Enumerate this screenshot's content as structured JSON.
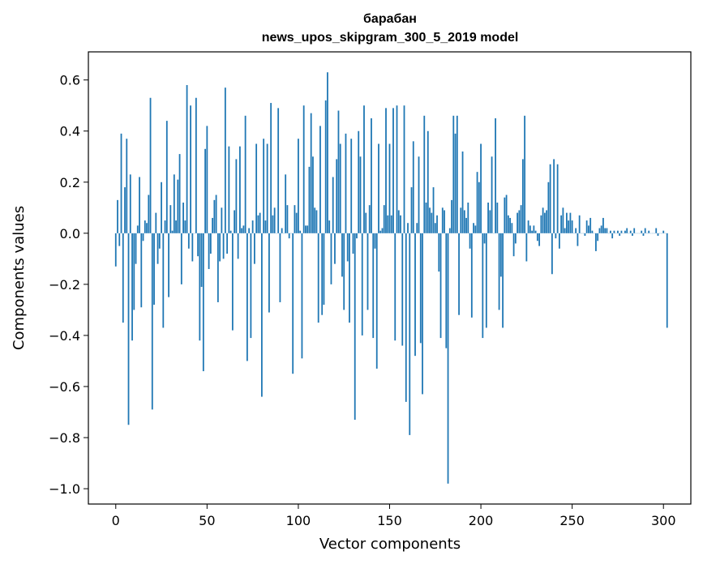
{
  "chart_data": {
    "type": "bar",
    "title": "барабан",
    "subtitle": "news_upos_skipgram_300_5_2019 model",
    "xlabel": "Vector components",
    "ylabel": "Components values",
    "xlim": [
      -15,
      315
    ],
    "ylim": [
      -1.06,
      0.71
    ],
    "xticks": [
      0,
      50,
      100,
      150,
      200,
      250,
      300
    ],
    "xtick_labels": [
      "0",
      "50",
      "100",
      "150",
      "200",
      "250",
      "300"
    ],
    "yticks": [
      -1.0,
      -0.8,
      -0.6,
      -0.4,
      -0.2,
      0.0,
      0.2,
      0.4,
      0.6
    ],
    "ytick_labels": [
      "−1.0",
      "−0.8",
      "−0.6",
      "−0.4",
      "−0.2",
      "0.0",
      "0.2",
      "0.4",
      "0.6"
    ],
    "bar_color": "#1f77b4",
    "grid": false,
    "series": [
      {
        "values": [
          -0.13,
          0.13,
          -0.05,
          0.39,
          -0.35,
          0.18,
          0.37,
          -0.75,
          0.23,
          -0.42,
          -0.3,
          -0.12,
          0.03,
          0.22,
          -0.29,
          -0.03,
          0.05,
          0.04,
          0.15,
          0.53,
          -0.69,
          -0.28,
          0.08,
          -0.12,
          -0.06,
          0.2,
          -0.37,
          0.05,
          0.44,
          -0.25,
          0.11,
          0.01,
          0.23,
          0.05,
          0.21,
          0.31,
          -0.2,
          0.12,
          0.05,
          0.58,
          -0.06,
          0.5,
          -0.11,
          0.0,
          0.53,
          -0.09,
          -0.42,
          -0.21,
          -0.54,
          0.33,
          0.42,
          -0.14,
          -0.08,
          0.06,
          0.13,
          0.15,
          -0.27,
          -0.11,
          0.1,
          -0.1,
          0.57,
          -0.08,
          0.34,
          0.01,
          -0.38,
          0.09,
          0.29,
          -0.1,
          0.34,
          0.02,
          0.03,
          0.46,
          -0.5,
          0.02,
          -0.41,
          0.05,
          -0.12,
          0.35,
          0.07,
          0.08,
          -0.64,
          0.37,
          0.05,
          0.35,
          -0.31,
          0.51,
          0.07,
          0.1,
          0.0,
          0.49,
          -0.27,
          0.02,
          0.0,
          0.23,
          0.11,
          -0.02,
          0.0,
          -0.55,
          0.11,
          0.08,
          0.37,
          0.01,
          -0.49,
          0.5,
          0.03,
          0.03,
          0.26,
          0.47,
          0.3,
          0.1,
          0.09,
          -0.35,
          0.42,
          -0.32,
          -0.28,
          0.52,
          0.63,
          0.05,
          -0.2,
          0.22,
          -0.12,
          0.29,
          0.48,
          0.35,
          -0.17,
          -0.3,
          0.39,
          -0.11,
          -0.35,
          0.37,
          -0.08,
          -0.73,
          -0.02,
          0.4,
          0.3,
          -0.4,
          0.5,
          0.08,
          -0.3,
          0.11,
          0.45,
          -0.41,
          -0.06,
          -0.53,
          0.35,
          0.01,
          0.02,
          0.11,
          0.49,
          0.07,
          0.35,
          0.07,
          0.49,
          -0.42,
          0.5,
          0.09,
          0.07,
          -0.44,
          0.5,
          -0.66,
          0.04,
          -0.79,
          0.18,
          0.36,
          -0.48,
          0.04,
          0.3,
          -0.43,
          -0.63,
          0.46,
          0.12,
          0.4,
          0.1,
          0.08,
          0.18,
          0.04,
          0.07,
          -0.15,
          -0.41,
          0.1,
          0.09,
          -0.45,
          -0.98,
          0.02,
          0.13,
          0.46,
          0.39,
          0.46,
          -0.32,
          0.1,
          0.32,
          0.09,
          0.06,
          0.12,
          -0.06,
          -0.33,
          0.04,
          0.03,
          0.24,
          0.2,
          0.35,
          -0.41,
          -0.04,
          -0.37,
          0.12,
          0.09,
          0.3,
          0.0,
          0.45,
          0.12,
          -0.3,
          -0.17,
          -0.37,
          0.14,
          0.15,
          0.07,
          0.06,
          0.04,
          -0.09,
          -0.04,
          0.08,
          0.09,
          0.11,
          0.29,
          0.46,
          -0.11,
          0.05,
          0.03,
          0.01,
          0.03,
          0.01,
          -0.03,
          -0.05,
          0.07,
          0.1,
          0.08,
          0.09,
          0.2,
          0.27,
          -0.16,
          0.29,
          -0.02,
          0.27,
          -0.06,
          0.07,
          0.1,
          0.02,
          0.08,
          0.05,
          0.08,
          0.05,
          0.0,
          0.02,
          -0.05,
          0.07,
          0.0,
          0.0,
          -0.01,
          0.05,
          0.03,
          0.06,
          0.01,
          0.0,
          -0.07,
          -0.03,
          0.02,
          0.03,
          0.06,
          0.02,
          0.02,
          0.0,
          0.01,
          -0.02,
          0.01,
          0.0,
          0.01,
          -0.01,
          0.01,
          0.0,
          0.01,
          0.02,
          0.0,
          0.01,
          -0.01,
          0.02,
          0.0,
          0.0,
          0.0,
          0.01,
          -0.01,
          0.02,
          0.0,
          0.01,
          0.0,
          0.0,
          0.0,
          0.02,
          -0.01,
          0.0,
          0.0,
          0.01,
          0.0,
          -0.37
        ]
      }
    ]
  }
}
